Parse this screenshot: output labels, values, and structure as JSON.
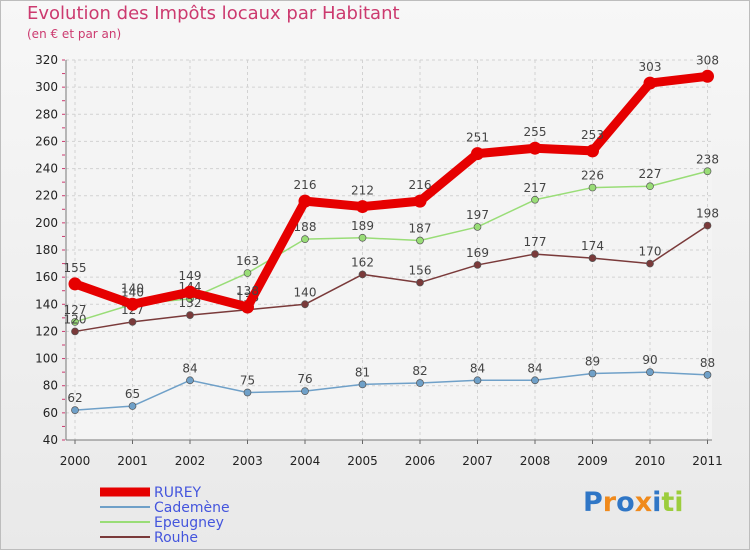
{
  "chart_data": {
    "type": "line",
    "title": "Evolution des Impôts locaux par Habitant",
    "subtitle": "(en € et par an)",
    "xlabel": "",
    "ylabel": "",
    "x": [
      "2000",
      "2001",
      "2002",
      "2003",
      "2004",
      "2005",
      "2006",
      "2007",
      "2008",
      "2009",
      "2010",
      "2011"
    ],
    "ylim": [
      40,
      320
    ],
    "yticks": [
      40,
      60,
      80,
      100,
      120,
      140,
      160,
      180,
      200,
      220,
      240,
      260,
      280,
      300,
      320
    ],
    "grid": true,
    "legend_position": "bottom-left",
    "series": [
      {
        "name": "RUREY",
        "color": "#e60000",
        "values": [
          155,
          140,
          149,
          138,
          216,
          212,
          216,
          251,
          255,
          253,
          303,
          308
        ]
      },
      {
        "name": "Cademène",
        "color": "#6fa0c8",
        "values": [
          62,
          65,
          84,
          75,
          76,
          81,
          82,
          84,
          84,
          89,
          90,
          88
        ]
      },
      {
        "name": "Epeugney",
        "color": "#99dd77",
        "values": [
          127,
          140,
          144,
          163,
          188,
          189,
          187,
          197,
          217,
          226,
          227,
          238
        ]
      },
      {
        "name": "Rouhe",
        "color": "#7a3a3a",
        "values": [
          120,
          127,
          132,
          136,
          140,
          162,
          156,
          169,
          177,
          174,
          170,
          198
        ]
      }
    ]
  },
  "brand": {
    "name": "Proxiti",
    "letters": [
      "P",
      "r",
      "o",
      "x",
      "i",
      "t",
      "i"
    ],
    "colors": [
      "#2f76c6",
      "#f08a1c",
      "#2f76c6",
      "#f08a1c",
      "#2f76c6",
      "#9ccd3d",
      "#9ccd3d"
    ]
  }
}
